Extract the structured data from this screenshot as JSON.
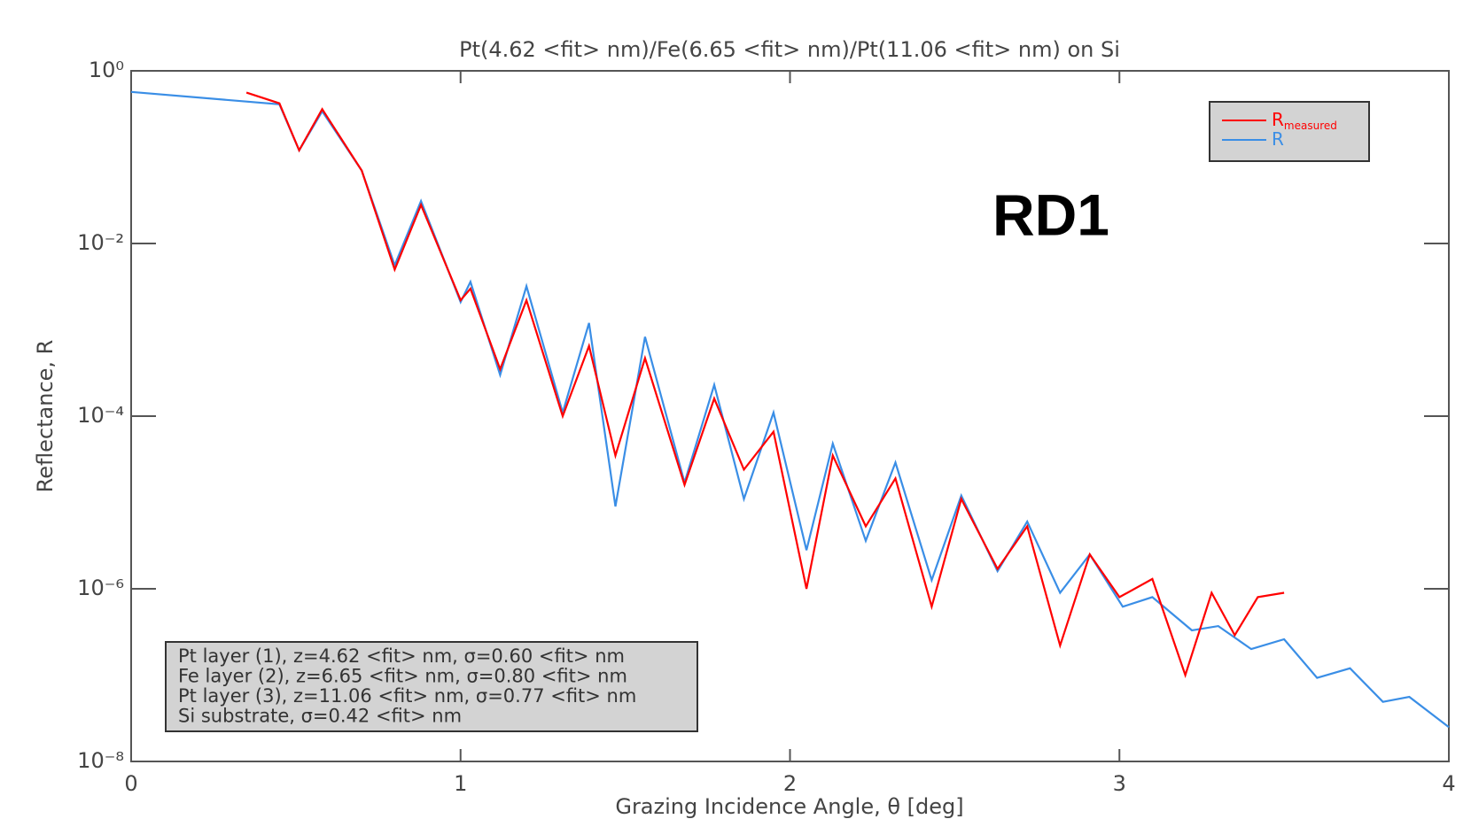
{
  "chart_data": {
    "type": "line",
    "title": "Pt(4.62 <fit> nm)/Fe(6.65 <fit> nm)/Pt(11.06 <fit> nm) on Si",
    "x_label": "Grazing Incidence Angle, θ [deg]",
    "y_label": "Reflectance, R",
    "log_y": true,
    "xlim": [
      0,
      4
    ],
    "xticks": [
      0,
      1,
      2,
      3,
      4
    ],
    "ylim": [
      1e-08,
      1
    ],
    "yticks": [
      {
        "value": 1,
        "label": "10⁰"
      },
      {
        "value": 0.01,
        "label": "10⁻²"
      },
      {
        "value": 0.0001,
        "label": "10⁻⁴"
      },
      {
        "value": 1e-06,
        "label": "10⁻⁶"
      },
      {
        "value": 1e-08,
        "label": "10⁻⁸"
      }
    ],
    "legend": "top-right",
    "series": [
      {
        "name": "R",
        "name_subscript": "measured",
        "color": "#ff0000",
        "x": [
          0.35,
          0.45,
          0.51,
          0.58,
          0.7,
          0.8,
          0.88,
          1.0,
          1.03,
          1.12,
          1.2,
          1.31,
          1.39,
          1.47,
          1.56,
          1.68,
          1.77,
          1.86,
          1.95,
          2.05,
          2.13,
          2.23,
          2.32,
          2.43,
          2.52,
          2.63,
          2.72,
          2.82,
          2.91,
          3.0,
          3.1,
          3.2,
          3.28,
          3.35,
          3.42,
          3.5
        ],
        "values": [
          0.56,
          0.42,
          0.12,
          0.36,
          0.07,
          0.005,
          0.028,
          0.0022,
          0.003,
          0.00035,
          0.0022,
          0.0001,
          0.00065,
          3.5e-05,
          0.00047,
          1.6e-05,
          0.00016,
          2.4e-05,
          6.6e-05,
          1e-06,
          3.5e-05,
          5.3e-06,
          1.9e-05,
          6.2e-07,
          1.1e-05,
          1.7e-06,
          5.3e-06,
          2.2e-07,
          2.5e-06,
          8e-07,
          1.3e-06,
          1e-07,
          9e-07,
          2.9e-07,
          8e-07,
          9e-07
        ]
      },
      {
        "name": "R",
        "color": "#3a8ee6",
        "x": [
          0,
          0.45,
          0.51,
          0.58,
          0.7,
          0.8,
          0.88,
          1.0,
          1.03,
          1.12,
          1.2,
          1.31,
          1.39,
          1.47,
          1.56,
          1.68,
          1.77,
          1.86,
          1.95,
          2.05,
          2.13,
          2.23,
          2.32,
          2.43,
          2.52,
          2.63,
          2.72,
          2.82,
          2.91,
          3.01,
          3.1,
          3.22,
          3.3,
          3.4,
          3.5,
          3.6,
          3.7,
          3.8,
          3.88,
          4.0
        ],
        "values": [
          0.57,
          0.41,
          0.12,
          0.34,
          0.07,
          0.0056,
          0.031,
          0.0021,
          0.0036,
          0.0003,
          0.0032,
          0.00011,
          0.0012,
          9e-06,
          0.00083,
          1.7e-05,
          0.00023,
          1.1e-05,
          0.00011,
          2.8e-06,
          4.8e-05,
          3.6e-06,
          2.9e-05,
          1.26e-06,
          1.2e-05,
          1.6e-06,
          6e-06,
          9e-07,
          2.5e-06,
          6.2e-07,
          8e-07,
          3.3e-07,
          3.7e-07,
          2e-07,
          2.6e-07,
          9.3e-08,
          1.2e-07,
          4.9e-08,
          5.6e-08,
          2.5e-08
        ]
      }
    ],
    "annotations": [
      "RD1"
    ],
    "info_box": [
      "Pt layer (1), z=4.62 <fit> nm, σ=0.60 <fit> nm",
      "Fe layer (2), z=6.65 <fit> nm, σ=0.80 <fit> nm",
      "Pt layer (3), z=11.06 <fit> nm, σ=0.77 <fit> nm",
      "Si substrate, σ=0.42 <fit> nm"
    ]
  }
}
